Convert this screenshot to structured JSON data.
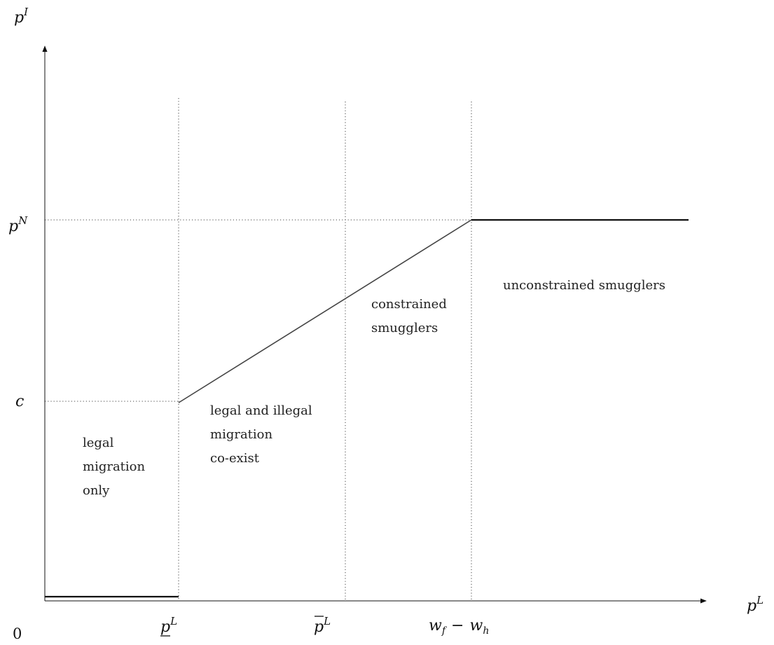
{
  "axes": {
    "x_base": "p",
    "x_sup": "L",
    "y_base": "p",
    "y_sup": "I",
    "origin": "0"
  },
  "x_ticks": {
    "lower_base": "p",
    "lower_sup": "L",
    "upper_base": "p",
    "upper_sup": "L",
    "wage_gap_base1": "w",
    "wage_gap_sub1": "f",
    "wage_gap_minus": "−",
    "wage_gap_base2": "w",
    "wage_gap_sub2": "h"
  },
  "y_ticks": {
    "pn_base": "p",
    "pn_sup": "N",
    "c": "c"
  },
  "regions": {
    "legal_only": [
      "legal",
      "migration",
      "only"
    ],
    "coexist": [
      "legal and illegal",
      "migration",
      "co-exist"
    ],
    "constrained": [
      "constrained",
      "smugglers"
    ],
    "unconstrained": [
      "unconstrained smugglers"
    ]
  }
}
